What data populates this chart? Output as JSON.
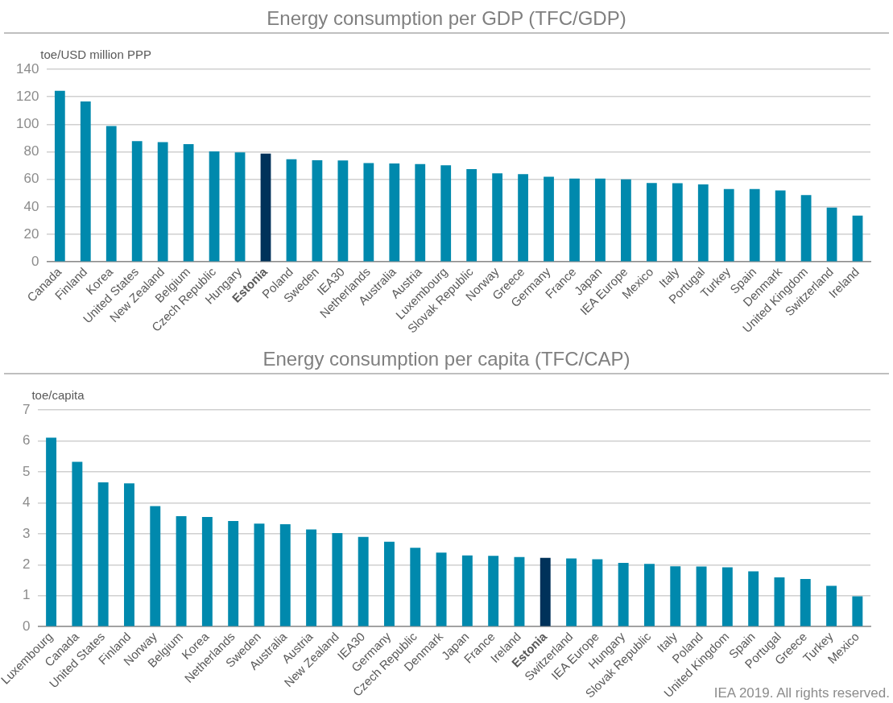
{
  "chart_data": [
    {
      "type": "bar",
      "title": "Energy consumption per GDP (TFC/GDP)",
      "ylabel": "toe/USD million PPP",
      "categories": [
        "Canada",
        "Finland",
        "Korea",
        "United States",
        "New Zealand",
        "Belgium",
        "Czech Republic",
        "Hungary",
        "Estonia",
        "Poland",
        "Sweden",
        "IEA30",
        "Netherlands",
        "Australia",
        "Austria",
        "Luxembourg",
        "Slovak Republic",
        "Norway",
        "Greece",
        "Germany",
        "France",
        "Japan",
        "IEA Europe",
        "Mexico",
        "Italy",
        "Portugal",
        "Turkey",
        "Spain",
        "Denmark",
        "United Kingdom",
        "Switzerland",
        "Ireland"
      ],
      "values": [
        124.4,
        116.6,
        98.7,
        87.7,
        87,
        85.6,
        80.3,
        79.6,
        78.7,
        74.6,
        73.9,
        73.7,
        71.8,
        71.6,
        71.1,
        70.2,
        67.4,
        64.4,
        63.7,
        61.9,
        60.5,
        60.5,
        60,
        57.4,
        57.2,
        56.3,
        53,
        53,
        51.9,
        48.6,
        39.5,
        33.7
      ],
      "colors": [
        "#0089ad",
        "#0089ad",
        "#0089ad",
        "#0089ad",
        "#0089ad",
        "#0089ad",
        "#0089ad",
        "#0089ad",
        "#00325a",
        "#0089ad",
        "#0089ad",
        "#0089ad",
        "#0089ad",
        "#0089ad",
        "#0089ad",
        "#0089ad",
        "#0089ad",
        "#0089ad",
        "#0089ad",
        "#0089ad",
        "#0089ad",
        "#0089ad",
        "#0089ad",
        "#0089ad",
        "#0089ad",
        "#0089ad",
        "#0089ad",
        "#0089ad",
        "#0089ad",
        "#0089ad",
        "#0089ad",
        "#0089ad"
      ],
      "ylim": [
        0,
        140
      ],
      "yticks": [
        0,
        20,
        40,
        60,
        80,
        100,
        120,
        140
      ],
      "grid": "y",
      "legend": false
    },
    {
      "type": "bar",
      "title": "Energy consumption per capita (TFC/CAP)",
      "ylabel": "toe/capita",
      "categories": [
        "Luxembourg",
        "Canada",
        "United States",
        "Finland",
        "Norway",
        "Belgium",
        "Korea",
        "Netherlands",
        "Sweden",
        "Australia",
        "Austria",
        "New Zealand",
        "IEA30",
        "Germany",
        "Czech Republic",
        "Denmark",
        "Japan",
        "France",
        "Ireland",
        "Estonia",
        "Switzerland",
        "IEA Europe",
        "Hungary",
        "Slovak Republic",
        "Italy",
        "Poland",
        "United Kingdom",
        "Spain",
        "Portugal",
        "Greece",
        "Turkey",
        "Mexico"
      ],
      "values": [
        6.1,
        5.32,
        4.66,
        4.63,
        3.89,
        3.57,
        3.54,
        3.41,
        3.33,
        3.31,
        3.14,
        3.02,
        2.9,
        2.74,
        2.55,
        2.39,
        2.3,
        2.29,
        2.25,
        2.22,
        2.2,
        2.18,
        2.06,
        2.03,
        1.95,
        1.94,
        1.92,
        1.79,
        1.59,
        1.54,
        1.32,
        0.98
      ],
      "colors": [
        "#0089ad",
        "#0089ad",
        "#0089ad",
        "#0089ad",
        "#0089ad",
        "#0089ad",
        "#0089ad",
        "#0089ad",
        "#0089ad",
        "#0089ad",
        "#0089ad",
        "#0089ad",
        "#0089ad",
        "#0089ad",
        "#0089ad",
        "#0089ad",
        "#0089ad",
        "#0089ad",
        "#0089ad",
        "#00325a",
        "#0089ad",
        "#0089ad",
        "#0089ad",
        "#0089ad",
        "#0089ad",
        "#0089ad",
        "#0089ad",
        "#0089ad",
        "#0089ad",
        "#0089ad",
        "#0089ad",
        "#0089ad"
      ],
      "ylim": [
        0,
        7
      ],
      "yticks": [
        0,
        1,
        2,
        3,
        4,
        5,
        6,
        7
      ],
      "grid": "y",
      "legend": false,
      "annotations": [
        "IEA 2019. All rights reserved."
      ]
    }
  ]
}
